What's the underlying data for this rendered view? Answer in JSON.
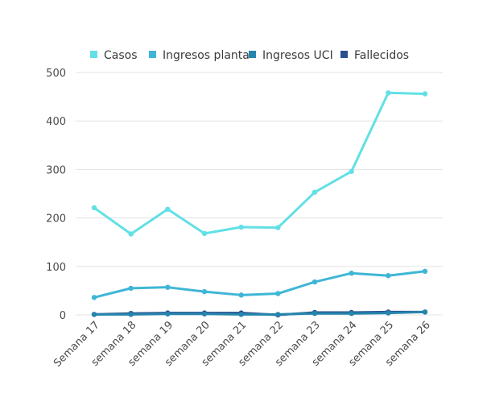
{
  "chart_data": {
    "type": "line",
    "title": "",
    "xlabel": "",
    "ylabel": "",
    "categories": [
      "Semana 17",
      "semana 18",
      "semana 19",
      "semana 20",
      "semana 21",
      "semana 22",
      "semana 23",
      "semana 24",
      "semana 25",
      "semana 26"
    ],
    "ylim": [
      0,
      500
    ],
    "yticks": [
      0,
      100,
      200,
      300,
      400,
      500
    ],
    "grid": true,
    "legend_position": "top",
    "series": [
      {
        "name": "Casos",
        "color": "#62e0e6",
        "values": [
          221,
          167,
          218,
          168,
          181,
          180,
          253,
          296,
          458,
          456
        ]
      },
      {
        "name": "Ingresos planta",
        "color": "#3fb6d6",
        "values": [
          36,
          55,
          57,
          48,
          41,
          44,
          68,
          86,
          81,
          90
        ]
      },
      {
        "name": "Ingresos UCI",
        "color": "#2585ad",
        "values": [
          1,
          1,
          2,
          2,
          1,
          1,
          3,
          3,
          4,
          6
        ]
      },
      {
        "name": "Fallecidos",
        "color": "#2a4f8c",
        "values": [
          1,
          3,
          4,
          4,
          4,
          0,
          5,
          5,
          6,
          6
        ]
      }
    ]
  }
}
